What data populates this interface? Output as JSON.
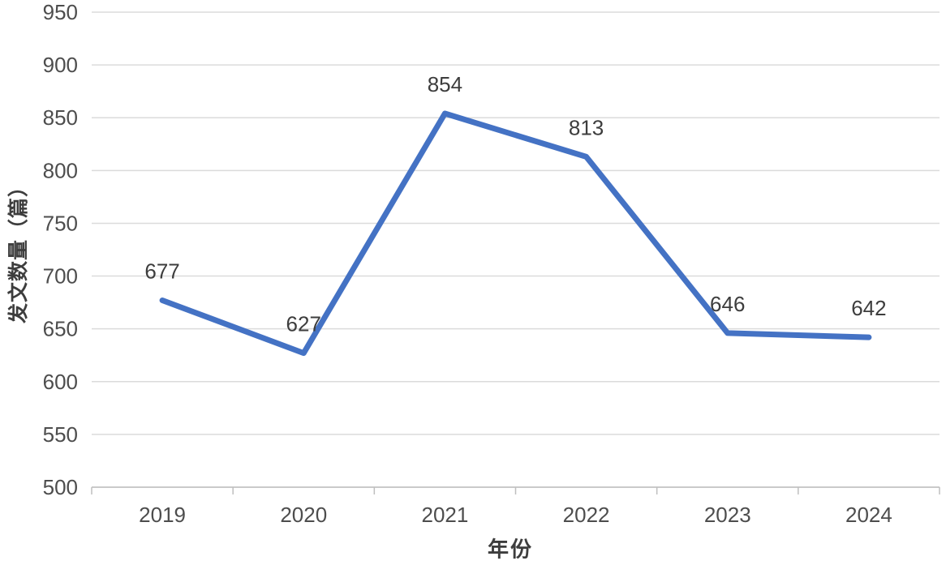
{
  "chart_data": {
    "type": "line",
    "title": "",
    "xlabel": "年份",
    "ylabel": "发文数量（篇）",
    "categories": [
      "2019",
      "2020",
      "2021",
      "2022",
      "2023",
      "2024"
    ],
    "series": [
      {
        "name": "发文数量",
        "values": [
          677,
          627,
          854,
          813,
          646,
          642
        ]
      }
    ],
    "data_labels": true,
    "ylim": [
      500,
      950
    ],
    "ytick_step": 50,
    "grid": true,
    "legend_position": "none",
    "colors": {
      "line": "#4472C4",
      "gridline": "#DBDBDB",
      "axis_line": "#BFBFBF",
      "tick_text": "#4d4d4d",
      "data_label_text": "#3d3d3d",
      "background": "#FFFFFF"
    }
  }
}
